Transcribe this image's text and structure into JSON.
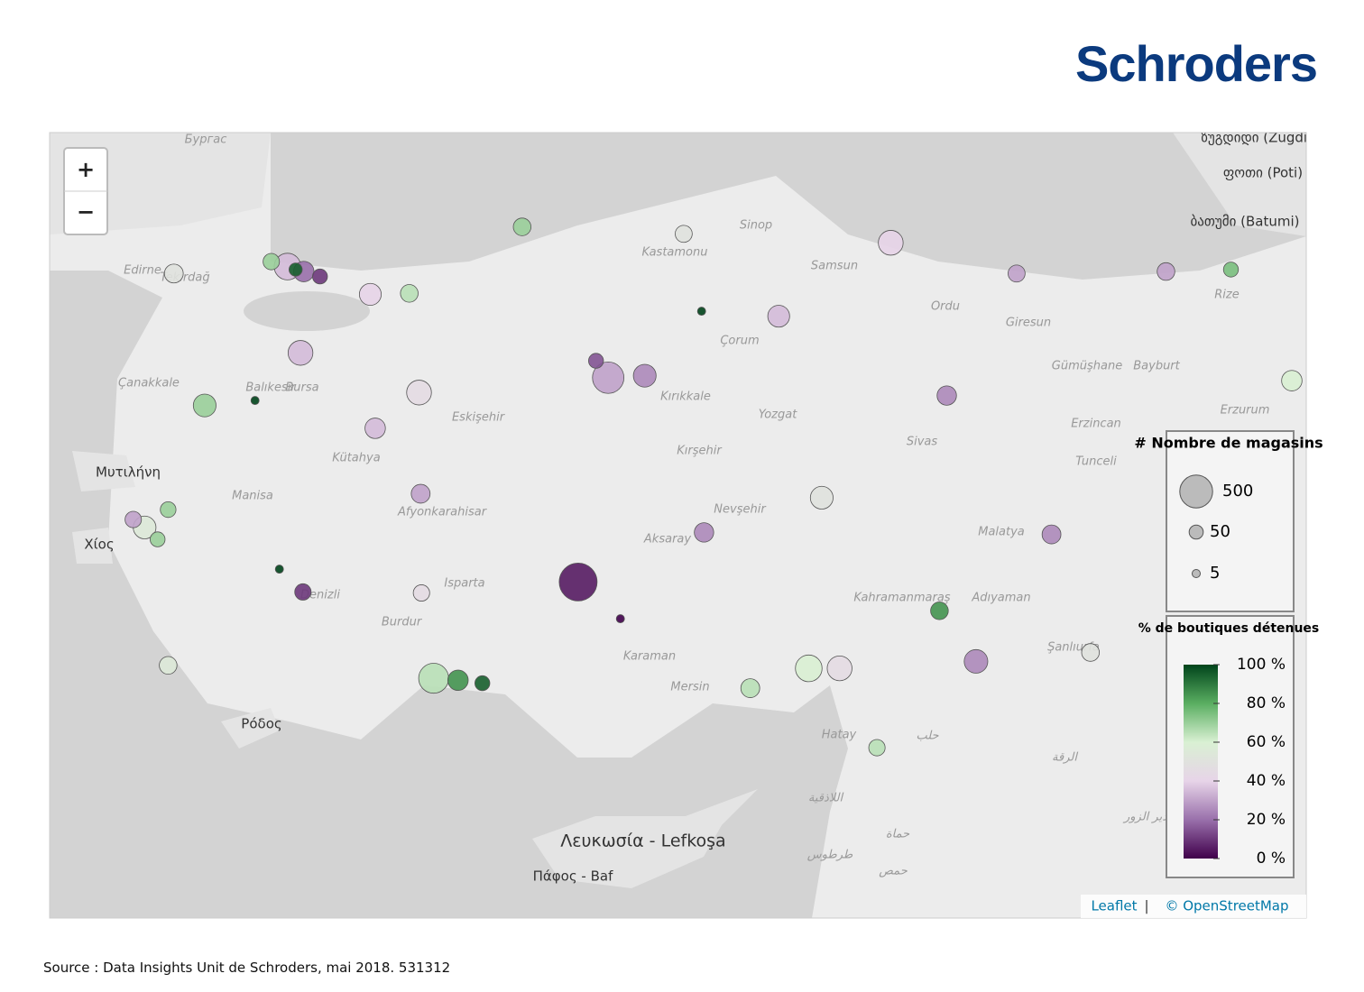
{
  "header": {
    "logo": "Schroders"
  },
  "map": {
    "zoom": {
      "in": "+",
      "out": "−"
    },
    "place_names": [
      "Бургас",
      "Edirne",
      "Tekirdağ",
      "Çanakkale",
      "Balıkesir",
      "Bursa",
      "Eskişehir",
      "Kütahya",
      "Manisa",
      "Afyonkarahisar",
      "Isparta",
      "Burdur",
      "Denizli",
      "Μυτιλήνη",
      "Χίος",
      "Ρόδος",
      "Λευκωσία - Lefkoşa",
      "Πάφος - Baf",
      "Kastamonu",
      "Sinop",
      "Samsun",
      "Çorum",
      "Ordu",
      "Giresun",
      "Rize",
      "Gümüşhane",
      "Bayburt",
      "Erzincan",
      "Erzurum",
      "Sivas",
      "Tunceli",
      "Kırşehir",
      "Kırıkkale",
      "Yozgat",
      "Nevşehir",
      "Aksaray",
      "Mersin",
      "Karaman",
      "Kahramanmaraş",
      "Adıyaman",
      "Şanlıurfa",
      "Malatya",
      "Hatay",
      "حلب",
      "الرقة",
      "اللاذقية",
      "حماة",
      "طرطوس",
      "حمص",
      "دير الزور",
      "ზუგდიდი (Zugdidi)",
      "ფოთი (Poti)",
      "ბათუმი (Batumi)"
    ],
    "stores": [
      {
        "lat": 37.87,
        "lon": 32.48,
        "count": 700,
        "pct": 5
      },
      {
        "lat": 39.93,
        "lon": 32.85,
        "count": 450,
        "pct": 30
      },
      {
        "lat": 39.95,
        "lon": 33.3,
        "count": 200,
        "pct": 25
      },
      {
        "lat": 40.1,
        "lon": 32.7,
        "count": 60,
        "pct": 15
      },
      {
        "lat": 36.9,
        "lon": 30.7,
        "count": 400,
        "pct": 65
      },
      {
        "lat": 36.88,
        "lon": 31.0,
        "count": 150,
        "pct": 85
      },
      {
        "lat": 36.85,
        "lon": 31.3,
        "count": 60,
        "pct": 95
      },
      {
        "lat": 41.05,
        "lon": 28.9,
        "count": 300,
        "pct": 35
      },
      {
        "lat": 41.0,
        "lon": 29.1,
        "count": 150,
        "pct": 20
      },
      {
        "lat": 41.1,
        "lon": 28.7,
        "count": 80,
        "pct": 70
      },
      {
        "lat": 40.95,
        "lon": 29.3,
        "count": 60,
        "pct": 10
      },
      {
        "lat": 41.02,
        "lon": 29.0,
        "count": 40,
        "pct": 95
      },
      {
        "lat": 38.42,
        "lon": 27.14,
        "count": 200,
        "pct": 55
      },
      {
        "lat": 38.5,
        "lon": 27.0,
        "count": 80,
        "pct": 30
      },
      {
        "lat": 38.3,
        "lon": 27.3,
        "count": 60,
        "pct": 70
      },
      {
        "lat": 40.18,
        "lon": 29.06,
        "count": 250,
        "pct": 35
      },
      {
        "lat": 37.0,
        "lon": 35.32,
        "count": 300,
        "pct": 60
      },
      {
        "lat": 37.0,
        "lon": 35.7,
        "count": 250,
        "pct": 45
      },
      {
        "lat": 36.8,
        "lon": 34.6,
        "count": 120,
        "pct": 65
      },
      {
        "lat": 37.07,
        "lon": 37.38,
        "count": 220,
        "pct": 25
      },
      {
        "lat": 38.72,
        "lon": 35.48,
        "count": 200,
        "pct": 50
      },
      {
        "lat": 39.78,
        "lon": 30.52,
        "count": 250,
        "pct": 45
      },
      {
        "lat": 41.29,
        "lon": 36.33,
        "count": 250,
        "pct": 40
      },
      {
        "lat": 41.0,
        "lon": 39.72,
        "count": 100,
        "pct": 30
      },
      {
        "lat": 39.9,
        "lon": 41.27,
        "count": 150,
        "pct": 60
      },
      {
        "lat": 39.75,
        "lon": 37.02,
        "count": 130,
        "pct": 25
      },
      {
        "lat": 37.91,
        "lon": 40.23,
        "count": 120,
        "pct": 45
      },
      {
        "lat": 37.16,
        "lon": 38.79,
        "count": 100,
        "pct": 50
      },
      {
        "lat": 38.35,
        "lon": 38.31,
        "count": 120,
        "pct": 25
      },
      {
        "lat": 38.5,
        "lon": 43.4,
        "count": 100,
        "pct": 55
      },
      {
        "lat": 37.77,
        "lon": 29.09,
        "count": 80,
        "pct": 10
      },
      {
        "lat": 38.6,
        "lon": 27.43,
        "count": 70,
        "pct": 70
      },
      {
        "lat": 39.65,
        "lon": 27.88,
        "count": 200,
        "pct": 70
      },
      {
        "lat": 40.77,
        "lon": 29.92,
        "count": 180,
        "pct": 40
      },
      {
        "lat": 40.78,
        "lon": 30.4,
        "count": 100,
        "pct": 65
      },
      {
        "lat": 40.98,
        "lon": 27.5,
        "count": 120,
        "pct": 50
      },
      {
        "lat": 41.67,
        "lon": 26.56,
        "count": 80,
        "pct": 30
      },
      {
        "lat": 36.2,
        "lon": 36.16,
        "count": 80,
        "pct": 65
      },
      {
        "lat": 37.58,
        "lon": 36.93,
        "count": 100,
        "pct": 85
      },
      {
        "lat": 40.98,
        "lon": 37.88,
        "count": 90,
        "pct": 30
      },
      {
        "lat": 41.02,
        "lon": 40.52,
        "count": 60,
        "pct": 75
      },
      {
        "lat": 38.37,
        "lon": 34.03,
        "count": 130,
        "pct": 25
      },
      {
        "lat": 38.76,
        "lon": 30.54,
        "count": 120,
        "pct": 30
      },
      {
        "lat": 39.42,
        "lon": 29.98,
        "count": 150,
        "pct": 35
      },
      {
        "lat": 40.55,
        "lon": 34.95,
        "count": 180,
        "pct": 35
      },
      {
        "lat": 41.38,
        "lon": 33.78,
        "count": 90,
        "pct": 50
      },
      {
        "lat": 41.45,
        "lon": 31.79,
        "count": 100,
        "pct": 70
      },
      {
        "lat": 37.76,
        "lon": 30.55,
        "count": 80,
        "pct": 45
      },
      {
        "lat": 37.03,
        "lon": 27.43,
        "count": 100,
        "pct": 55
      },
      {
        "lat": 39.7,
        "lon": 28.5,
        "count": 5,
        "pct": 100
      },
      {
        "lat": 38.0,
        "lon": 28.8,
        "count": 5,
        "pct": 100
      },
      {
        "lat": 37.5,
        "lon": 33.0,
        "count": 5,
        "pct": 0
      },
      {
        "lat": 40.6,
        "lon": 34.0,
        "count": 5,
        "pct": 100
      }
    ],
    "size_legend": {
      "title": "# Nombre de magasins",
      "values": [
        500,
        50,
        5
      ]
    },
    "color_legend": {
      "title": "% de boutiques détenues",
      "lim": [
        0,
        100
      ],
      "colors": [
        "#40004b",
        "#9970ab",
        "#e7d4e8",
        "#d9f0d3",
        "#5aae61",
        "#00441b"
      ],
      "ticks": [
        {
          "value": 100,
          "label": "100 %"
        },
        {
          "value": 80,
          "label": "80 %"
        },
        {
          "value": 60,
          "label": "60 %"
        },
        {
          "value": 40,
          "label": "40 %"
        },
        {
          "value": 20,
          "label": "20 %"
        },
        {
          "value": 0,
          "label": "0 %"
        }
      ]
    },
    "attribution": {
      "leaflet": "Leaflet",
      "separator": "|",
      "osm": "© OpenStreetMap"
    }
  },
  "footer": {
    "source": "Source : Data Insights Unit de Schroders, mai 2018. 531312"
  }
}
